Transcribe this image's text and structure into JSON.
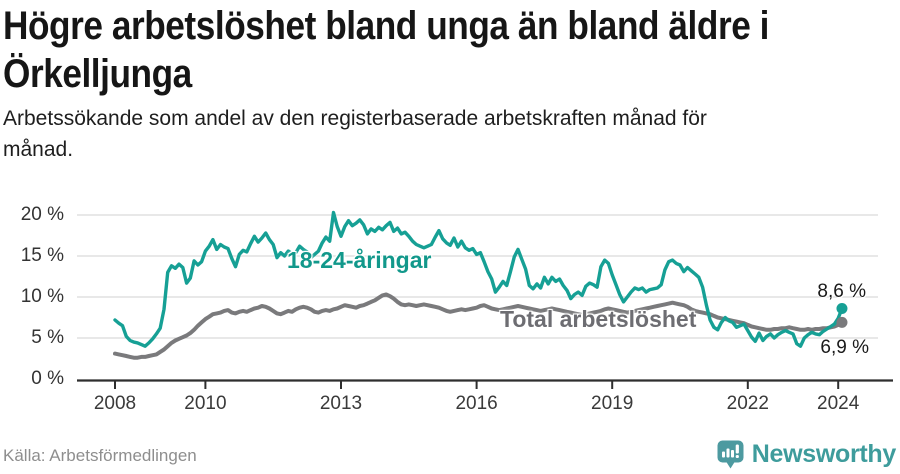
{
  "header": {
    "title_lines": [
      "Högre arbetslöshet bland unga än bland äldre i",
      "Örkelljunga"
    ],
    "subtitle_lines": [
      "Arbetssökande som andel av den registerbaserade arbetskraften månad för",
      "månad."
    ]
  },
  "chart_data": {
    "type": "line",
    "unit": "%",
    "x_start_year": 2008,
    "x_start_month": 1,
    "x_monthly_step": true,
    "x_end": 2024.083,
    "ylim": [
      0,
      21
    ],
    "grid": "horizontal",
    "legend_position": "inline-labels",
    "axis_color": "#2e2e2e",
    "grid_color": "#d9d9d9",
    "yticks": [
      {
        "value": 0,
        "label": "0 %"
      },
      {
        "value": 5,
        "label": "5 %"
      },
      {
        "value": 10,
        "label": "10 %"
      },
      {
        "value": 15,
        "label": "15 %"
      },
      {
        "value": 20,
        "label": "20 %"
      }
    ],
    "xticks": [
      {
        "year": 2008,
        "label": "2008"
      },
      {
        "year": 2010,
        "label": "2010"
      },
      {
        "year": 2013,
        "label": "2013"
      },
      {
        "year": 2016,
        "label": "2016"
      },
      {
        "year": 2019,
        "label": "2019"
      },
      {
        "year": 2022,
        "label": "2022"
      },
      {
        "year": 2024,
        "label": "2024"
      }
    ],
    "series": [
      {
        "name": "Total arbetslöshet",
        "color": "#7a7a7c",
        "label_color": "#6d6d72",
        "end_value": 6.9,
        "end_label": "6,9 %",
        "values": [
          3.1,
          3.0,
          2.9,
          2.8,
          2.7,
          2.6,
          2.6,
          2.7,
          2.7,
          2.8,
          2.9,
          3.0,
          3.3,
          3.6,
          4.0,
          4.4,
          4.7,
          4.9,
          5.1,
          5.3,
          5.6,
          6.0,
          6.5,
          6.9,
          7.3,
          7.6,
          7.9,
          8.0,
          8.1,
          8.3,
          8.4,
          8.1,
          8.0,
          8.2,
          8.3,
          8.2,
          8.4,
          8.6,
          8.7,
          8.9,
          8.8,
          8.6,
          8.3,
          8.0,
          7.9,
          8.1,
          8.3,
          8.2,
          8.5,
          8.7,
          8.8,
          8.7,
          8.5,
          8.2,
          8.1,
          8.3,
          8.4,
          8.3,
          8.5,
          8.6,
          8.8,
          9.0,
          8.9,
          8.8,
          8.7,
          8.9,
          9.0,
          9.2,
          9.4,
          9.6,
          9.9,
          10.2,
          10.3,
          10.1,
          9.8,
          9.4,
          9.1,
          9.0,
          9.1,
          9.0,
          8.9,
          9.0,
          9.1,
          9.0,
          8.9,
          8.8,
          8.7,
          8.5,
          8.3,
          8.2,
          8.3,
          8.4,
          8.5,
          8.4,
          8.5,
          8.6,
          8.7,
          8.9,
          9.0,
          8.8,
          8.6,
          8.5,
          8.4,
          8.5,
          8.6,
          8.7,
          8.8,
          8.9,
          8.8,
          8.7,
          8.6,
          8.5,
          8.4,
          8.3,
          8.4,
          8.5,
          8.6,
          8.5,
          8.4,
          8.3,
          8.2,
          8.1,
          8.0,
          7.9,
          7.8,
          7.9,
          8.0,
          8.1,
          8.2,
          8.3,
          8.5,
          8.6,
          8.5,
          8.4,
          8.3,
          8.2,
          8.1,
          8.2,
          8.3,
          8.4,
          8.5,
          8.6,
          8.7,
          8.8,
          8.9,
          9.0,
          9.1,
          9.2,
          9.3,
          9.2,
          9.1,
          9.0,
          8.8,
          8.5,
          8.3,
          8.2,
          8.1,
          8.0,
          7.9,
          7.7,
          7.5,
          7.4,
          7.3,
          7.2,
          7.1,
          7.0,
          6.9,
          6.8,
          6.6,
          6.4,
          6.3,
          6.2,
          6.1,
          6.0,
          6.0,
          6.1,
          6.1,
          6.2,
          6.2,
          6.3,
          6.2,
          6.1,
          6.0,
          6.0,
          6.1,
          6.0,
          6.1,
          6.1,
          6.2,
          6.2,
          6.3,
          6.4,
          6.6,
          6.9
        ]
      },
      {
        "name": "18-24-åringar",
        "color": "#16a095",
        "label_color": "#12988b",
        "end_value": 8.6,
        "end_label": "8,6 %",
        "values": [
          7.2,
          6.8,
          6.5,
          5.2,
          4.7,
          4.5,
          4.4,
          4.2,
          4.0,
          4.4,
          4.9,
          5.5,
          6.2,
          8.5,
          13.0,
          13.8,
          13.5,
          14.0,
          13.6,
          11.7,
          12.3,
          14.4,
          13.9,
          14.3,
          15.6,
          16.2,
          17.0,
          15.8,
          16.4,
          16.1,
          15.9,
          14.7,
          13.7,
          15.2,
          15.7,
          15.5,
          16.5,
          17.4,
          16.7,
          17.2,
          17.8,
          17.0,
          16.4,
          14.8,
          15.4,
          15.0,
          15.6,
          15.3,
          15.4,
          16.2,
          15.8,
          15.5,
          14.8,
          15.2,
          15.6,
          16.6,
          17.3,
          16.8,
          20.3,
          18.6,
          17.4,
          18.6,
          19.3,
          18.7,
          19.0,
          19.4,
          18.8,
          17.7,
          18.3,
          18.0,
          18.5,
          18.2,
          18.7,
          19.1,
          18.0,
          18.4,
          17.7,
          17.9,
          17.4,
          16.8,
          16.4,
          16.2,
          16.0,
          16.2,
          16.4,
          17.3,
          18.1,
          17.1,
          16.6,
          16.3,
          17.2,
          16.1,
          16.8,
          16.0,
          15.7,
          15.9,
          15.2,
          15.4,
          14.3,
          13.1,
          12.2,
          10.6,
          11.2,
          11.9,
          11.4,
          13.1,
          14.9,
          15.8,
          14.6,
          13.4,
          11.4,
          11.0,
          11.6,
          11.1,
          12.4,
          11.6,
          12.4,
          11.9,
          12.2,
          11.4,
          10.8,
          9.8,
          10.3,
          10.6,
          10.2,
          11.3,
          11.7,
          11.5,
          11.2,
          13.7,
          14.5,
          14.1,
          12.7,
          11.5,
          10.3,
          9.4,
          10.0,
          10.6,
          11.1,
          10.9,
          11.1,
          10.6,
          10.9,
          11.0,
          11.1,
          11.5,
          13.3,
          14.3,
          14.5,
          14.1,
          13.9,
          13.1,
          13.6,
          13.2,
          12.8,
          12.4,
          11.2,
          9.0,
          7.2,
          6.3,
          6.0,
          6.9,
          7.5,
          7.1,
          6.9,
          6.3,
          6.5,
          6.7,
          5.9,
          5.1,
          4.6,
          5.6,
          4.7,
          5.2,
          5.5,
          5.0,
          5.4,
          5.7,
          5.9,
          5.7,
          5.5,
          4.3,
          4.0,
          5.0,
          5.4,
          5.7,
          5.5,
          5.4,
          5.8,
          6.1,
          6.4,
          6.7,
          7.4,
          8.6
        ]
      }
    ]
  },
  "footer": {
    "source": "Källa: Arbetsförmedlingen",
    "brand": "Newsworthy"
  }
}
